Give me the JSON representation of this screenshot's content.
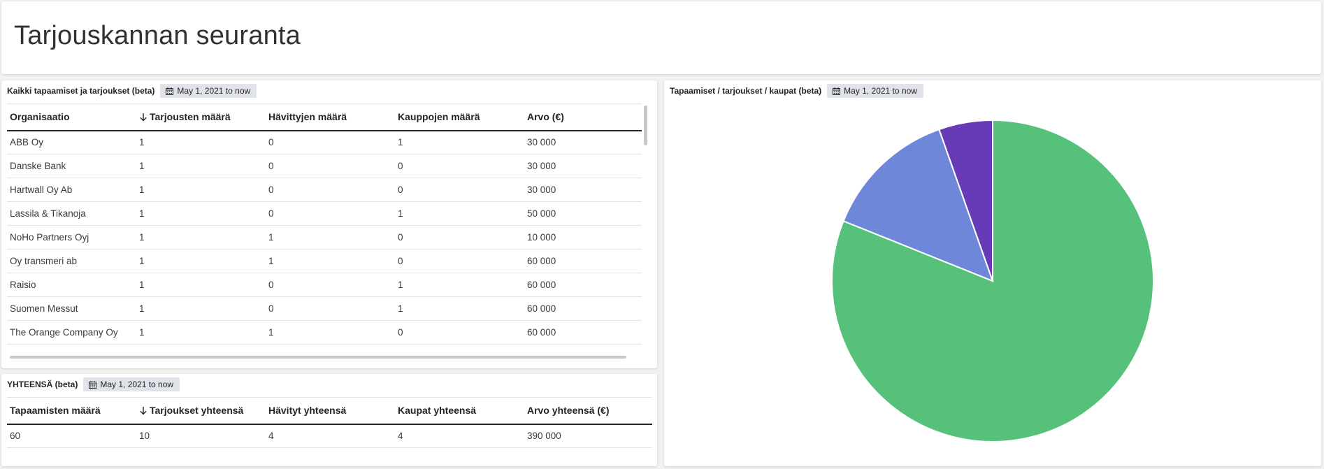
{
  "header": {
    "title": "Tarjouskannan seuranta"
  },
  "main_table": {
    "title": "Kaikki tapaamiset ja tarjoukset (beta)",
    "date_range": "May 1, 2021 to now",
    "columns": [
      "Organisaatio",
      "Tarjousten määrä",
      "Hävittyjen määrä",
      "Kauppojen määrä",
      "Arvo (€)"
    ],
    "sorted_column": 1,
    "rows": [
      [
        "ABB Oy",
        "1",
        "0",
        "1",
        "30 000"
      ],
      [
        "Danske Bank",
        "1",
        "0",
        "0",
        "30 000"
      ],
      [
        "Hartwall Oy Ab",
        "1",
        "0",
        "0",
        "30 000"
      ],
      [
        "Lassila & Tikanoja",
        "1",
        "0",
        "1",
        "50 000"
      ],
      [
        "NoHo Partners Oyj",
        "1",
        "1",
        "0",
        "10 000"
      ],
      [
        "Oy transmeri ab",
        "1",
        "1",
        "0",
        "60 000"
      ],
      [
        "Raisio",
        "1",
        "0",
        "1",
        "60 000"
      ],
      [
        "Suomen Messut",
        "1",
        "0",
        "1",
        "60 000"
      ],
      [
        "The Orange Company Oy",
        "1",
        "1",
        "0",
        "60 000"
      ]
    ]
  },
  "totals_table": {
    "title": "YHTEENSÄ (beta)",
    "date_range": "May 1, 2021 to now",
    "columns": [
      "Tapaamisten määrä",
      "Tarjoukset yhteensä",
      "Hävityt yhteensä",
      "Kaupat yhteensä",
      "Arvo yhteensä (€)"
    ],
    "sorted_column": 1,
    "rows": [
      [
        "60",
        "10",
        "4",
        "4",
        "390 000"
      ]
    ]
  },
  "pie_card": {
    "title": "Tapaamiset / tarjoukset / kaupat (beta)",
    "date_range": "May 1, 2021 to now"
  },
  "chart_data": {
    "type": "pie",
    "title": "",
    "slices": [
      {
        "value": 60,
        "color": "#56c17a"
      },
      {
        "value": 10,
        "color": "#6f87d8"
      },
      {
        "value": 4,
        "color": "#673ab7"
      }
    ]
  },
  "icons": {
    "date_chip": "calendar-icon",
    "sort": "arrow-down-icon"
  },
  "colors": {
    "page_bg": "#f1f1f1",
    "chip_bg": "#e1e3ea"
  }
}
